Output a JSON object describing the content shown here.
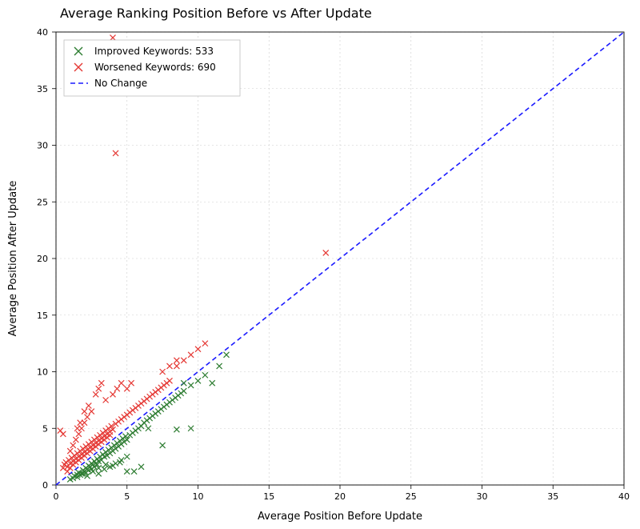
{
  "chart": {
    "type": "scatter",
    "title": "Average Ranking Position Before vs After Update",
    "title_fontsize": 16,
    "xlabel": "Average Position Before Update",
    "ylabel": "Average Position After Update",
    "label_fontsize": 13,
    "xlim": [
      0,
      40
    ],
    "ylim": [
      0,
      40
    ],
    "xtick_step": 5,
    "ytick_step": 5,
    "background_color": "#ffffff",
    "grid_color": "#cccccc",
    "axis_color": "#000000",
    "tick_label_fontsize": 11,
    "legend": {
      "items": [
        {
          "label": "Improved Keywords: 533",
          "marker": "x",
          "color": "#2e7d32"
        },
        {
          "label": "Worsened Keywords: 690",
          "marker": "x",
          "color": "#e53935"
        },
        {
          "label": "No Change",
          "marker": "dashed-line",
          "color": "#1a1aff"
        }
      ],
      "position": "upper-left",
      "fontsize": 12,
      "border_color": "#bfbfbf",
      "bg_color": "#ffffff"
    },
    "reference_line": {
      "x0": 0,
      "y0": 0,
      "x1": 40,
      "y1": 40,
      "color": "#1a1aff",
      "dash": "6,4",
      "width": 1.6
    },
    "marker_size": 7,
    "marker_linewidth": 1.2,
    "series": [
      {
        "name": "improved",
        "color": "#2e7d32",
        "points": [
          [
            1.0,
            0.5
          ],
          [
            1.2,
            0.6
          ],
          [
            1.3,
            0.8
          ],
          [
            1.5,
            0.9
          ],
          [
            1.6,
            1.1
          ],
          [
            1.8,
            1.0
          ],
          [
            1.9,
            1.3
          ],
          [
            2.0,
            1.2
          ],
          [
            2.1,
            1.5
          ],
          [
            2.2,
            1.4
          ],
          [
            2.3,
            1.7
          ],
          [
            2.4,
            1.6
          ],
          [
            2.5,
            1.9
          ],
          [
            2.6,
            1.8
          ],
          [
            2.7,
            2.1
          ],
          [
            2.8,
            1.9
          ],
          [
            2.9,
            2.3
          ],
          [
            3.0,
            2.1
          ],
          [
            3.1,
            2.5
          ],
          [
            3.2,
            2.2
          ],
          [
            3.3,
            2.7
          ],
          [
            3.4,
            2.5
          ],
          [
            3.5,
            2.9
          ],
          [
            3.6,
            2.6
          ],
          [
            3.7,
            3.1
          ],
          [
            3.8,
            2.8
          ],
          [
            3.9,
            3.3
          ],
          [
            4.0,
            3.0
          ],
          [
            4.1,
            3.5
          ],
          [
            4.2,
            3.2
          ],
          [
            4.3,
            3.7
          ],
          [
            4.4,
            3.4
          ],
          [
            4.5,
            3.9
          ],
          [
            4.6,
            3.6
          ],
          [
            4.7,
            4.1
          ],
          [
            4.8,
            3.8
          ],
          [
            4.9,
            4.3
          ],
          [
            5.0,
            4.0
          ],
          [
            5.2,
            4.4
          ],
          [
            5.4,
            4.6
          ],
          [
            5.6,
            4.8
          ],
          [
            5.8,
            5.0
          ],
          [
            6.0,
            5.2
          ],
          [
            6.2,
            5.5
          ],
          [
            6.4,
            5.7
          ],
          [
            6.6,
            5.9
          ],
          [
            6.8,
            6.1
          ],
          [
            7.0,
            6.3
          ],
          [
            7.2,
            6.5
          ],
          [
            7.4,
            6.7
          ],
          [
            7.6,
            6.9
          ],
          [
            7.8,
            7.1
          ],
          [
            8.0,
            7.3
          ],
          [
            8.2,
            7.5
          ],
          [
            8.4,
            7.7
          ],
          [
            8.6,
            7.9
          ],
          [
            8.8,
            8.1
          ],
          [
            9.0,
            8.3
          ],
          [
            9.5,
            8.8
          ],
          [
            10.0,
            9.2
          ],
          [
            10.5,
            9.7
          ],
          [
            11.0,
            9.0
          ],
          [
            11.5,
            10.5
          ],
          [
            12.0,
            11.5
          ],
          [
            3.0,
            1.5
          ],
          [
            3.5,
            1.8
          ],
          [
            4.0,
            1.7
          ],
          [
            4.5,
            2.0
          ],
          [
            5.0,
            1.2
          ],
          [
            5.5,
            1.2
          ],
          [
            6.0,
            1.6
          ],
          [
            6.5,
            5.0
          ],
          [
            2.2,
            0.8
          ],
          [
            2.6,
            1.2
          ],
          [
            3.0,
            1.0
          ],
          [
            3.4,
            1.4
          ],
          [
            3.8,
            1.6
          ],
          [
            4.2,
            1.9
          ],
          [
            4.6,
            2.2
          ],
          [
            5.0,
            2.5
          ],
          [
            1.5,
            0.7
          ],
          [
            1.7,
            0.9
          ],
          [
            1.9,
            1.0
          ],
          [
            2.1,
            1.1
          ],
          [
            2.3,
            1.3
          ],
          [
            2.5,
            1.4
          ],
          [
            2.7,
            1.6
          ],
          [
            2.9,
            1.8
          ],
          [
            8.5,
            4.9
          ],
          [
            9.0,
            9.0
          ],
          [
            7.5,
            3.5
          ],
          [
            9.5,
            5.0
          ]
        ]
      },
      {
        "name": "worsened",
        "color": "#e53935",
        "points": [
          [
            0.5,
            1.5
          ],
          [
            0.6,
            1.8
          ],
          [
            0.7,
            2.0
          ],
          [
            0.8,
            1.6
          ],
          [
            0.9,
            2.2
          ],
          [
            1.0,
            1.9
          ],
          [
            1.1,
            2.4
          ],
          [
            1.2,
            2.1
          ],
          [
            1.3,
            2.6
          ],
          [
            1.4,
            2.3
          ],
          [
            1.5,
            2.8
          ],
          [
            1.6,
            2.5
          ],
          [
            1.7,
            3.0
          ],
          [
            1.8,
            2.7
          ],
          [
            1.9,
            3.2
          ],
          [
            2.0,
            2.9
          ],
          [
            2.1,
            3.4
          ],
          [
            2.2,
            3.1
          ],
          [
            2.3,
            3.6
          ],
          [
            2.4,
            3.3
          ],
          [
            2.5,
            3.8
          ],
          [
            2.6,
            3.5
          ],
          [
            2.7,
            4.0
          ],
          [
            2.8,
            3.7
          ],
          [
            2.9,
            4.2
          ],
          [
            3.0,
            3.9
          ],
          [
            3.1,
            4.4
          ],
          [
            3.2,
            4.1
          ],
          [
            3.3,
            4.6
          ],
          [
            3.4,
            4.3
          ],
          [
            3.5,
            4.8
          ],
          [
            3.6,
            4.5
          ],
          [
            3.7,
            5.0
          ],
          [
            3.8,
            4.7
          ],
          [
            3.9,
            5.2
          ],
          [
            4.0,
            4.9
          ],
          [
            4.2,
            5.4
          ],
          [
            4.4,
            5.6
          ],
          [
            4.6,
            5.8
          ],
          [
            4.8,
            6.0
          ],
          [
            5.0,
            6.2
          ],
          [
            5.2,
            6.4
          ],
          [
            5.4,
            6.6
          ],
          [
            5.6,
            6.8
          ],
          [
            5.8,
            7.0
          ],
          [
            6.0,
            7.2
          ],
          [
            6.2,
            7.4
          ],
          [
            6.4,
            7.6
          ],
          [
            6.6,
            7.8
          ],
          [
            6.8,
            8.0
          ],
          [
            7.0,
            8.2
          ],
          [
            7.2,
            8.4
          ],
          [
            7.4,
            8.6
          ],
          [
            7.6,
            8.8
          ],
          [
            7.8,
            9.0
          ],
          [
            8.0,
            9.2
          ],
          [
            8.5,
            10.5
          ],
          [
            9.0,
            11.0
          ],
          [
            9.5,
            11.5
          ],
          [
            10.0,
            12.0
          ],
          [
            10.5,
            12.5
          ],
          [
            8.5,
            11.0
          ],
          [
            8.0,
            10.5
          ],
          [
            7.5,
            10.0
          ],
          [
            1.0,
            3.0
          ],
          [
            1.2,
            3.5
          ],
          [
            1.4,
            4.0
          ],
          [
            1.6,
            4.5
          ],
          [
            1.8,
            5.0
          ],
          [
            2.0,
            5.5
          ],
          [
            2.2,
            6.0
          ],
          [
            2.5,
            6.5
          ],
          [
            1.5,
            5.0
          ],
          [
            1.7,
            5.5
          ],
          [
            2.0,
            6.5
          ],
          [
            2.3,
            7.0
          ],
          [
            2.8,
            8.0
          ],
          [
            3.0,
            8.5
          ],
          [
            3.2,
            9.0
          ],
          [
            3.5,
            7.5
          ],
          [
            4.0,
            8.0
          ],
          [
            4.3,
            8.5
          ],
          [
            4.6,
            9.0
          ],
          [
            5.0,
            8.5
          ],
          [
            5.3,
            9.0
          ],
          [
            0.3,
            4.8
          ],
          [
            0.5,
            4.5
          ],
          [
            4.2,
            29.3
          ],
          [
            4.0,
            39.5
          ],
          [
            19.0,
            20.5
          ],
          [
            0.8,
            1.2
          ],
          [
            1.0,
            1.5
          ],
          [
            1.2,
            1.8
          ],
          [
            1.4,
            2.0
          ],
          [
            1.6,
            2.2
          ],
          [
            1.8,
            2.4
          ],
          [
            2.0,
            2.6
          ],
          [
            2.2,
            2.8
          ],
          [
            2.4,
            3.0
          ],
          [
            2.6,
            3.2
          ],
          [
            2.8,
            3.4
          ],
          [
            3.0,
            3.6
          ],
          [
            3.2,
            3.8
          ],
          [
            3.4,
            4.0
          ],
          [
            3.6,
            4.2
          ],
          [
            3.8,
            4.4
          ]
        ]
      }
    ]
  }
}
